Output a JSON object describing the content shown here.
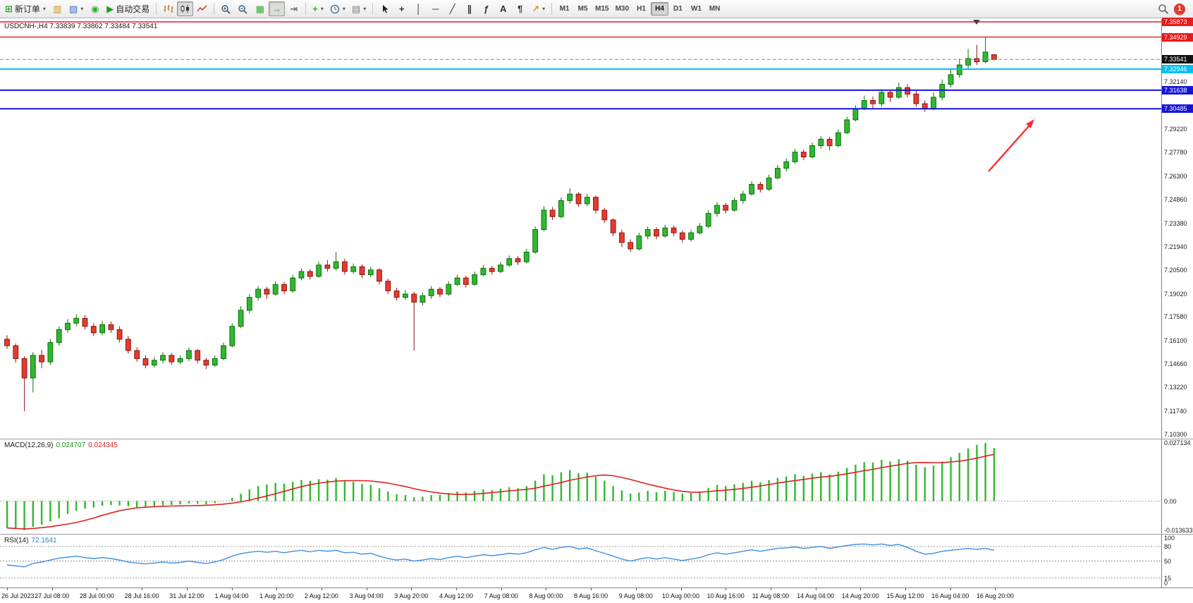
{
  "toolbar": {
    "new_order_label": "新订单",
    "autotrading_label": "自动交易",
    "timeframes": [
      "M1",
      "M5",
      "M15",
      "M30",
      "H1",
      "H4",
      "D1",
      "W1",
      "MN"
    ],
    "active_timeframe": "H4",
    "notification_count": "1",
    "icon_glyphs": {
      "new_order": "⊞",
      "new_chart": "▥",
      "profiles": "▧",
      "refresh": "◉",
      "autotrading": "▶",
      "tile": "▦",
      "autoscroll": "→",
      "shift": "⇥",
      "indicators": "+",
      "template": "▤",
      "crosshair": "+",
      "vline": "│",
      "hline": "─",
      "trendline": "╱",
      "channel": "∥",
      "fibo": "ƒ",
      "text": "A",
      "label": "¶",
      "arrows": "↗",
      "caret": "▾"
    },
    "items": [
      {
        "name": "new-order",
        "icon": "new_order",
        "label_key": "new_order_label",
        "caret": true
      },
      {
        "name": "new-chart",
        "icon": "new_chart"
      },
      {
        "name": "profiles",
        "icon": "profiles",
        "caret": true
      },
      {
        "name": "refresh",
        "icon": "refresh"
      },
      {
        "name": "autotrading",
        "icon": "autotrading",
        "label_key": "autotrading_label"
      },
      {
        "sep": true
      },
      {
        "name": "bar-chart",
        "svg": "bars"
      },
      {
        "name": "candlestick-chart",
        "svg": "candles",
        "active": true
      },
      {
        "name": "line-chart",
        "svg": "line"
      },
      {
        "sep": true
      },
      {
        "name": "zoom-in",
        "svg": "zoom_in"
      },
      {
        "name": "zoom-out",
        "svg": "zoom_out"
      },
      {
        "name": "tile-windows",
        "icon": "tile"
      },
      {
        "name": "auto-scroll",
        "icon": "autoscroll",
        "active": true
      },
      {
        "name": "chart-shift",
        "icon": "shift"
      },
      {
        "sep": true
      },
      {
        "name": "indicators",
        "icon": "indicators",
        "caret": true
      },
      {
        "name": "periods",
        "svg": "clock",
        "caret": true
      },
      {
        "name": "templates",
        "icon": "template",
        "caret": true
      },
      {
        "sep": true
      },
      {
        "name": "cursor",
        "svg": "cursor"
      },
      {
        "name": "crosshair",
        "icon": "crosshair"
      },
      {
        "name": "vertical-line",
        "icon": "vline"
      },
      {
        "name": "horizontal-line",
        "icon": "hline"
      },
      {
        "name": "trendline",
        "icon": "trendline"
      },
      {
        "name": "channel",
        "icon": "channel"
      },
      {
        "name": "fibonacci",
        "icon": "fibo"
      },
      {
        "name": "text",
        "icon": "text"
      },
      {
        "name": "text-label",
        "icon": "label"
      },
      {
        "name": "arrows",
        "icon": "arrows",
        "caret": true
      },
      {
        "sep": true
      }
    ]
  },
  "chart_data": {
    "type": "candlestick",
    "symbol": "USDCNH-",
    "period": "H4",
    "title": "USDCNH-,H4 7.33839 7.33862 7.33484 7.33541",
    "ohlc": {
      "open": "7.33839",
      "high": "7.33862",
      "low": "7.33484",
      "close": "7.33541"
    },
    "axis_max": 7.35873,
    "axis_min": 7.103,
    "y_ticks": [
      "7.32140",
      "7.29220",
      "7.27780",
      "7.26300",
      "7.24860",
      "7.23380",
      "7.21940",
      "7.20500",
      "7.19020",
      "7.17580",
      "7.16100",
      "7.14660",
      "7.13220",
      "7.11740",
      "7.10300"
    ],
    "hlines": [
      {
        "label": "7.35873",
        "value": 7.35873,
        "color": "#E81A1A",
        "width": 1.4
      },
      {
        "label": "7.34929",
        "value": 7.34929,
        "color": "#E81A1A",
        "width": 1.4
      },
      {
        "label": "7.32946",
        "value": 7.32946,
        "color": "#00C0F0",
        "width": 2
      },
      {
        "label": "7.31638",
        "value": 7.31638,
        "color": "#1414D8",
        "width": 2
      },
      {
        "label": "7.30485",
        "value": 7.30485,
        "color": "#1414D8",
        "width": 2
      }
    ],
    "bid": {
      "label": "7.33541",
      "value": 7.33541,
      "tag_color": "#111111"
    },
    "up_color": "#2FB92F",
    "down_color": "#E33C30",
    "candles": [
      [
        7.162,
        7.1645,
        7.156,
        7.158
      ],
      [
        7.158,
        7.1595,
        7.1475,
        7.15
      ],
      [
        7.15,
        7.1515,
        7.1174,
        7.138
      ],
      [
        7.138,
        7.154,
        7.129,
        7.152
      ],
      [
        7.152,
        7.1555,
        7.144,
        7.148
      ],
      [
        7.148,
        7.162,
        7.146,
        7.16
      ],
      [
        7.16,
        7.17,
        7.158,
        7.168
      ],
      [
        7.168,
        7.1745,
        7.166,
        7.172
      ],
      [
        7.172,
        7.1775,
        7.17,
        7.175
      ],
      [
        7.175,
        7.177,
        7.168,
        7.17
      ],
      [
        7.17,
        7.172,
        7.164,
        7.166
      ],
      [
        7.166,
        7.1735,
        7.1645,
        7.171
      ],
      [
        7.171,
        7.173,
        7.166,
        7.168
      ],
      [
        7.168,
        7.17,
        7.16,
        7.162
      ],
      [
        7.162,
        7.164,
        7.153,
        7.155
      ],
      [
        7.155,
        7.157,
        7.148,
        7.15
      ],
      [
        7.15,
        7.152,
        7.144,
        7.146
      ],
      [
        7.146,
        7.151,
        7.1445,
        7.149
      ],
      [
        7.149,
        7.154,
        7.147,
        7.152
      ],
      [
        7.152,
        7.1535,
        7.146,
        7.148
      ],
      [
        7.148,
        7.152,
        7.1465,
        7.15
      ],
      [
        7.15,
        7.157,
        7.1485,
        7.155
      ],
      [
        7.155,
        7.156,
        7.147,
        7.149
      ],
      [
        7.149,
        7.1505,
        7.1435,
        7.146
      ],
      [
        7.146,
        7.152,
        7.145,
        7.15
      ],
      [
        7.15,
        7.16,
        7.149,
        7.158
      ],
      [
        7.158,
        7.172,
        7.157,
        7.17
      ],
      [
        7.17,
        7.1825,
        7.169,
        7.18
      ],
      [
        7.18,
        7.19,
        7.178,
        7.188
      ],
      [
        7.188,
        7.195,
        7.186,
        7.193
      ],
      [
        7.193,
        7.1945,
        7.187,
        7.19
      ],
      [
        7.19,
        7.198,
        7.189,
        7.196
      ],
      [
        7.196,
        7.1975,
        7.19,
        7.192
      ],
      [
        7.192,
        7.202,
        7.191,
        7.2
      ],
      [
        7.2,
        7.206,
        7.1985,
        7.204
      ],
      [
        7.204,
        7.2055,
        7.199,
        7.201
      ],
      [
        7.201,
        7.21,
        7.2,
        7.208
      ],
      [
        7.208,
        7.211,
        7.204,
        7.206
      ],
      [
        7.206,
        7.216,
        7.2045,
        7.21
      ],
      [
        7.21,
        7.212,
        7.202,
        7.204
      ],
      [
        7.204,
        7.209,
        7.2025,
        7.207
      ],
      [
        7.207,
        7.2085,
        7.2,
        7.202
      ],
      [
        7.202,
        7.207,
        7.2005,
        7.205
      ],
      [
        7.205,
        7.206,
        7.196,
        7.198
      ],
      [
        7.198,
        7.1995,
        7.19,
        7.192
      ],
      [
        7.192,
        7.194,
        7.186,
        7.188
      ],
      [
        7.188,
        7.1925,
        7.1865,
        7.19
      ],
      [
        7.19,
        7.1915,
        7.155,
        7.185
      ],
      [
        7.185,
        7.191,
        7.183,
        7.189
      ],
      [
        7.189,
        7.195,
        7.187,
        7.193
      ],
      [
        7.193,
        7.1945,
        7.188,
        7.19
      ],
      [
        7.19,
        7.198,
        7.189,
        7.196
      ],
      [
        7.196,
        7.202,
        7.195,
        7.2
      ],
      [
        7.2,
        7.2015,
        7.194,
        7.196
      ],
      [
        7.196,
        7.204,
        7.195,
        7.202
      ],
      [
        7.202,
        7.208,
        7.201,
        7.206
      ],
      [
        7.206,
        7.2075,
        7.202,
        7.204
      ],
      [
        7.204,
        7.21,
        7.203,
        7.208
      ],
      [
        7.208,
        7.214,
        7.207,
        7.212
      ],
      [
        7.212,
        7.2135,
        7.208,
        7.21
      ],
      [
        7.21,
        7.218,
        7.209,
        7.216
      ],
      [
        7.216,
        7.232,
        7.215,
        7.23
      ],
      [
        7.23,
        7.2445,
        7.229,
        7.242
      ],
      [
        7.242,
        7.244,
        7.236,
        7.238
      ],
      [
        7.238,
        7.25,
        7.237,
        7.248
      ],
      [
        7.248,
        7.2555,
        7.246,
        7.252
      ],
      [
        7.252,
        7.253,
        7.244,
        7.246
      ],
      [
        7.246,
        7.252,
        7.2445,
        7.25
      ],
      [
        7.25,
        7.251,
        7.24,
        7.242
      ],
      [
        7.242,
        7.2435,
        7.234,
        7.236
      ],
      [
        7.236,
        7.237,
        7.226,
        7.228
      ],
      [
        7.228,
        7.23,
        7.219,
        7.222
      ],
      [
        7.222,
        7.224,
        7.216,
        7.218
      ],
      [
        7.218,
        7.228,
        7.217,
        7.226
      ],
      [
        7.226,
        7.232,
        7.224,
        7.23
      ],
      [
        7.23,
        7.2315,
        7.224,
        7.226
      ],
      [
        7.226,
        7.233,
        7.225,
        7.231
      ],
      [
        7.231,
        7.2325,
        7.226,
        7.228
      ],
      [
        7.228,
        7.2295,
        7.222,
        7.224
      ],
      [
        7.224,
        7.23,
        7.2225,
        7.228
      ],
      [
        7.228,
        7.234,
        7.227,
        7.232
      ],
      [
        7.232,
        7.242,
        7.231,
        7.24
      ],
      [
        7.24,
        7.247,
        7.238,
        7.245
      ],
      [
        7.245,
        7.2465,
        7.24,
        7.242
      ],
      [
        7.242,
        7.25,
        7.241,
        7.248
      ],
      [
        7.248,
        7.254,
        7.246,
        7.252
      ],
      [
        7.252,
        7.26,
        7.251,
        7.258
      ],
      [
        7.258,
        7.2595,
        7.253,
        7.255
      ],
      [
        7.255,
        7.264,
        7.254,
        7.262
      ],
      [
        7.262,
        7.27,
        7.261,
        7.268
      ],
      [
        7.268,
        7.274,
        7.266,
        7.272
      ],
      [
        7.272,
        7.28,
        7.271,
        7.278
      ],
      [
        7.278,
        7.2795,
        7.273,
        7.275
      ],
      [
        7.275,
        7.284,
        7.274,
        7.282
      ],
      [
        7.282,
        7.288,
        7.28,
        7.286
      ],
      [
        7.286,
        7.2875,
        7.279,
        7.282
      ],
      [
        7.282,
        7.292,
        7.281,
        7.29
      ],
      [
        7.29,
        7.3,
        7.289,
        7.298
      ],
      [
        7.298,
        7.307,
        7.297,
        7.305
      ],
      [
        7.305,
        7.313,
        7.304,
        7.31
      ],
      [
        7.31,
        7.3125,
        7.305,
        7.308
      ],
      [
        7.308,
        7.317,
        7.306,
        7.315
      ],
      [
        7.315,
        7.3165,
        7.309,
        7.312
      ],
      [
        7.312,
        7.321,
        7.311,
        7.318
      ],
      [
        7.318,
        7.32,
        7.312,
        7.314
      ],
      [
        7.314,
        7.316,
        7.306,
        7.308
      ],
      [
        7.308,
        7.31,
        7.303,
        7.3048
      ],
      [
        7.3048,
        7.315,
        7.304,
        7.312
      ],
      [
        7.312,
        7.323,
        7.31,
        7.32
      ],
      [
        7.32,
        7.329,
        7.318,
        7.326
      ],
      [
        7.326,
        7.336,
        7.324,
        7.332
      ],
      [
        7.332,
        7.342,
        7.33,
        7.336
      ],
      [
        7.336,
        7.3445,
        7.332,
        7.334
      ],
      [
        7.334,
        7.3492,
        7.333,
        7.34
      ],
      [
        7.33839,
        7.33862,
        7.33484,
        7.33541
      ]
    ],
    "time_labels": [
      "26 Jul 2023",
      "27 Jul 08:00",
      "28 Jul 00:00",
      "28 Jul 16:00",
      "31 Jul 12:00",
      "1 Aug 04:00",
      "1 Aug 20:00",
      "2 Aug 12:00",
      "3 Aug 04:00",
      "3 Aug 20:00",
      "4 Aug 12:00",
      "7 Aug 08:00",
      "8 Aug 00:00",
      "8 Aug 16:00",
      "9 Aug 08:00",
      "10 Aug 00:00",
      "10 Aug 16:00",
      "11 Aug 08:00",
      "14 Aug 04:00",
      "14 Aug 20:00",
      "15 Aug 12:00",
      "16 Aug 04:00",
      "16 Aug 20:00"
    ],
    "annotations": [
      {
        "type": "arrow",
        "color": "#FF2A2A",
        "direction": "up-right"
      }
    ],
    "indicators": {
      "macd": {
        "label": "MACD(12,26,9)",
        "main_value": "0.024707",
        "signal_value": "0.024345",
        "axis_max": 0.027134,
        "axis_min": -0.013633,
        "axis_labels": [
          {
            "text": "0.027134",
            "value": 0.027134
          },
          {
            "text": "0.00",
            "value": 0
          },
          {
            "text": "-0.013633",
            "value": -0.013633
          }
        ],
        "histogram_color": "#2FB92F",
        "signal_color": "#E02020",
        "histogram": [
          -0.0125,
          -0.013,
          -0.0135,
          -0.012,
          -0.011,
          -0.0095,
          -0.008,
          -0.006,
          -0.0045,
          -0.0035,
          -0.003,
          -0.0022,
          -0.0018,
          -0.002,
          -0.0025,
          -0.0028,
          -0.003,
          -0.0026,
          -0.002,
          -0.0018,
          -0.0015,
          -0.001,
          -0.0012,
          -0.0015,
          -0.001,
          0.0,
          0.0015,
          0.0035,
          0.0055,
          0.007,
          0.0078,
          0.0085,
          0.0082,
          0.009,
          0.0098,
          0.0095,
          0.0102,
          0.01,
          0.0108,
          0.0095,
          0.009,
          0.008,
          0.0075,
          0.006,
          0.0045,
          0.0032,
          0.0028,
          0.0018,
          0.002,
          0.0028,
          0.003,
          0.0038,
          0.0045,
          0.004,
          0.0048,
          0.0055,
          0.0052,
          0.0058,
          0.0065,
          0.006,
          0.007,
          0.0095,
          0.0125,
          0.012,
          0.0135,
          0.0145,
          0.013,
          0.0132,
          0.0115,
          0.0095,
          0.007,
          0.005,
          0.0035,
          0.004,
          0.0048,
          0.0042,
          0.0048,
          0.0042,
          0.0035,
          0.0038,
          0.0045,
          0.0062,
          0.0075,
          0.007,
          0.0078,
          0.0085,
          0.0095,
          0.0088,
          0.0098,
          0.0108,
          0.0115,
          0.0125,
          0.0118,
          0.0128,
          0.0135,
          0.0125,
          0.0138,
          0.0155,
          0.017,
          0.0182,
          0.018,
          0.0192,
          0.0185,
          0.0195,
          0.0188,
          0.017,
          0.0158,
          0.0165,
          0.0185,
          0.0205,
          0.0225,
          0.0245,
          0.0262,
          0.0271,
          0.0247
        ]
      },
      "rsi": {
        "label": "RSI(14)",
        "value": "72.1641",
        "line_color": "#3D8FE0",
        "levels": [
          80,
          50,
          15
        ],
        "axis_labels": [
          {
            "text": "100",
            "value": 100
          },
          {
            "text": "80",
            "value": 80
          },
          {
            "text": "50",
            "value": 50
          },
          {
            "text": "15",
            "value": 15
          },
          {
            "text": "0",
            "value": 0
          }
        ],
        "values": [
          42,
          40,
          38,
          45,
          48,
          52,
          56,
          58,
          60,
          57,
          55,
          57,
          55,
          52,
          48,
          46,
          44,
          46,
          48,
          46,
          47,
          50,
          47,
          45,
          48,
          53,
          60,
          65,
          68,
          70,
          68,
          70,
          67,
          70,
          72,
          69,
          72,
          70,
          72,
          67,
          68,
          64,
          66,
          60,
          55,
          52,
          54,
          50,
          52,
          55,
          53,
          57,
          60,
          57,
          60,
          63,
          61,
          63,
          66,
          64,
          67,
          73,
          78,
          74,
          78,
          80,
          75,
          77,
          71,
          66,
          60,
          54,
          50,
          54,
          57,
          54,
          57,
          54,
          51,
          54,
          57,
          63,
          67,
          64,
          67,
          70,
          73,
          70,
          73,
          76,
          77,
          79,
          76,
          78,
          80,
          76,
          79,
          82,
          84,
          85,
          83,
          85,
          82,
          84,
          78,
          70,
          64,
          66,
          70,
          72,
          74,
          76,
          74,
          76,
          72.2
        ]
      }
    }
  }
}
